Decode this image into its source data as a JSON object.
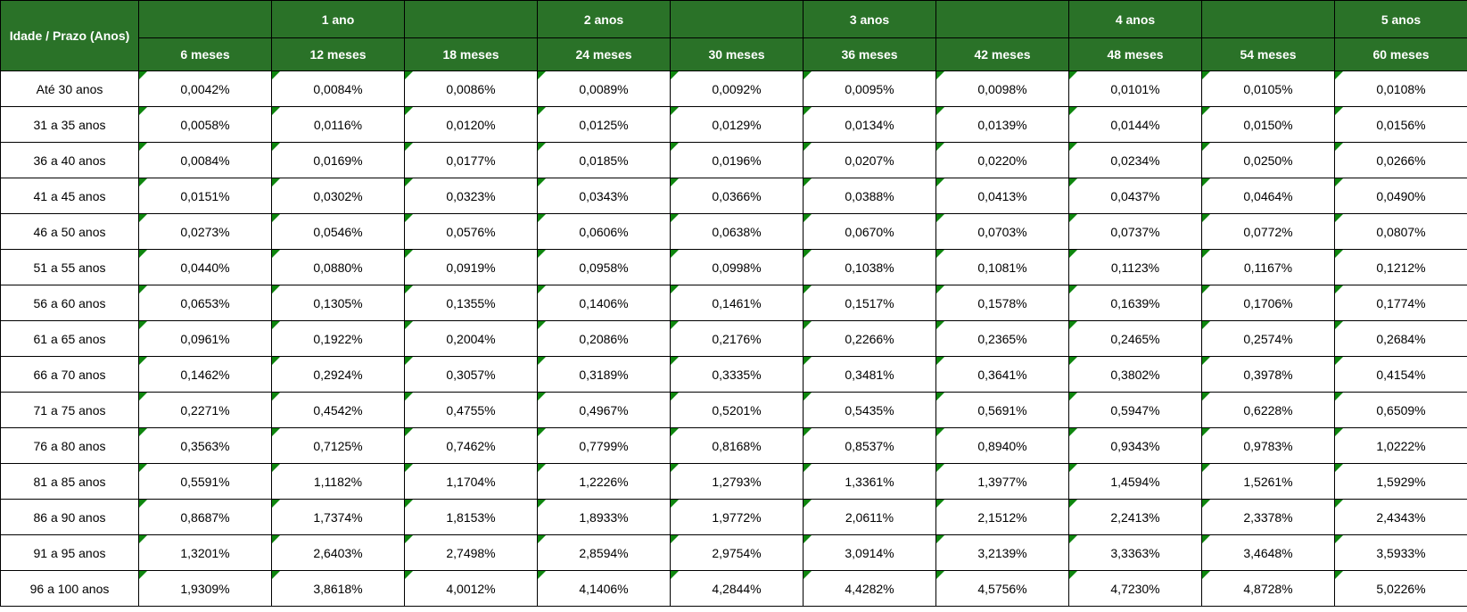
{
  "chart_data": {
    "type": "table",
    "corner_label": "Idade / Prazo (Anos)",
    "year_headers": [
      "",
      "1 ano",
      "",
      "2 anos",
      "",
      "3 anos",
      "",
      "4 anos",
      "",
      "5 anos"
    ],
    "month_headers": [
      "6 meses",
      "12 meses",
      "18 meses",
      "24 meses",
      "30 meses",
      "36 meses",
      "42 meses",
      "48 meses",
      "54 meses",
      "60 meses"
    ],
    "rows": [
      {
        "label": "Até 30 anos",
        "values": [
          "0,0042%",
          "0,0084%",
          "0,0086%",
          "0,0089%",
          "0,0092%",
          "0,0095%",
          "0,0098%",
          "0,0101%",
          "0,0105%",
          "0,0108%"
        ]
      },
      {
        "label": "31 a 35 anos",
        "values": [
          "0,0058%",
          "0,0116%",
          "0,0120%",
          "0,0125%",
          "0,0129%",
          "0,0134%",
          "0,0139%",
          "0,0144%",
          "0,0150%",
          "0,0156%"
        ]
      },
      {
        "label": "36 a 40 anos",
        "values": [
          "0,0084%",
          "0,0169%",
          "0,0177%",
          "0,0185%",
          "0,0196%",
          "0,0207%",
          "0,0220%",
          "0,0234%",
          "0,0250%",
          "0,0266%"
        ]
      },
      {
        "label": "41 a 45 anos",
        "values": [
          "0,0151%",
          "0,0302%",
          "0,0323%",
          "0,0343%",
          "0,0366%",
          "0,0388%",
          "0,0413%",
          "0,0437%",
          "0,0464%",
          "0,0490%"
        ]
      },
      {
        "label": "46 a 50 anos",
        "values": [
          "0,0273%",
          "0,0546%",
          "0,0576%",
          "0,0606%",
          "0,0638%",
          "0,0670%",
          "0,0703%",
          "0,0737%",
          "0,0772%",
          "0,0807%"
        ]
      },
      {
        "label": "51 a 55 anos",
        "values": [
          "0,0440%",
          "0,0880%",
          "0,0919%",
          "0,0958%",
          "0,0998%",
          "0,1038%",
          "0,1081%",
          "0,1123%",
          "0,1167%",
          "0,1212%"
        ]
      },
      {
        "label": "56 a 60 anos",
        "values": [
          "0,0653%",
          "0,1305%",
          "0,1355%",
          "0,1406%",
          "0,1461%",
          "0,1517%",
          "0,1578%",
          "0,1639%",
          "0,1706%",
          "0,1774%"
        ]
      },
      {
        "label": "61 a 65 anos",
        "values": [
          "0,0961%",
          "0,1922%",
          "0,2004%",
          "0,2086%",
          "0,2176%",
          "0,2266%",
          "0,2365%",
          "0,2465%",
          "0,2574%",
          "0,2684%"
        ]
      },
      {
        "label": "66 a 70 anos",
        "values": [
          "0,1462%",
          "0,2924%",
          "0,3057%",
          "0,3189%",
          "0,3335%",
          "0,3481%",
          "0,3641%",
          "0,3802%",
          "0,3978%",
          "0,4154%"
        ]
      },
      {
        "label": "71 a 75 anos",
        "values": [
          "0,2271%",
          "0,4542%",
          "0,4755%",
          "0,4967%",
          "0,5201%",
          "0,5435%",
          "0,5691%",
          "0,5947%",
          "0,6228%",
          "0,6509%"
        ]
      },
      {
        "label": "76 a 80 anos",
        "values": [
          "0,3563%",
          "0,7125%",
          "0,7462%",
          "0,7799%",
          "0,8168%",
          "0,8537%",
          "0,8940%",
          "0,9343%",
          "0,9783%",
          "1,0222%"
        ]
      },
      {
        "label": "81 a 85 anos",
        "values": [
          "0,5591%",
          "1,1182%",
          "1,1704%",
          "1,2226%",
          "1,2793%",
          "1,3361%",
          "1,3977%",
          "1,4594%",
          "1,5261%",
          "1,5929%"
        ]
      },
      {
        "label": "86 a 90 anos",
        "values": [
          "0,8687%",
          "1,7374%",
          "1,8153%",
          "1,8933%",
          "1,9772%",
          "2,0611%",
          "2,1512%",
          "2,2413%",
          "2,3378%",
          "2,4343%"
        ]
      },
      {
        "label": "91 a 95 anos",
        "values": [
          "1,3201%",
          "2,6403%",
          "2,7498%",
          "2,8594%",
          "2,9754%",
          "3,0914%",
          "3,2139%",
          "3,3363%",
          "3,4648%",
          "3,5933%"
        ]
      },
      {
        "label": "96 a 100 anos",
        "values": [
          "1,9309%",
          "3,8618%",
          "4,0012%",
          "4,1406%",
          "4,2844%",
          "4,4282%",
          "4,5756%",
          "4,7230%",
          "4,8728%",
          "5,0226%"
        ]
      }
    ]
  },
  "colors": {
    "header_green": "#2A7228",
    "triangle_green": "#0E860E",
    "border": "#000000",
    "text": "#000000",
    "header_text": "#FFFFFF",
    "cell_background": "#FFFFFF"
  },
  "icons": {
    "cell_flag": "green-triangle-top-left-indicator"
  }
}
